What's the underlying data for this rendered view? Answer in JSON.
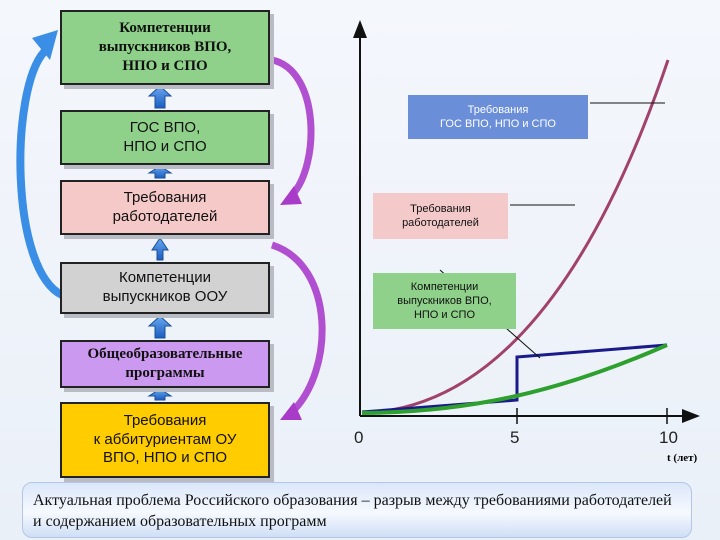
{
  "boxes": [
    {
      "text": "Компетенции\nвыпускников ВПО,\nНПО и СПО"
    },
    {
      "text": "ГОС ВПО,\nНПО и СПО"
    },
    {
      "text": "Требования\nработодателей"
    },
    {
      "text": "Компетенции\nвыпускников ООУ"
    },
    {
      "text": "Общеобразовательные\nпрограммы"
    },
    {
      "text": "Требования\nк аббитуриентам ОУ\nВПО, НПО и СПО"
    }
  ],
  "graph": {
    "labels": [
      "Требования\nГОС ВПО, НПО и СПО",
      "Требования\nработодателей",
      "Компетенции\nвыпускников ВПО,\nНПО и СПО"
    ],
    "x_ticks": [
      "0",
      "5",
      "10"
    ],
    "x_axis_label": "t (лет)"
  },
  "colors": {
    "requirements_curve": "#a0426a",
    "program_curve": "#2ea02e",
    "staircase": "#1a1a8a",
    "arrow_left": "#3a8ee6",
    "arrow_right": "#a83cc8"
  },
  "banner": {
    "text": "Актуальная проблема Российского образования – разрыв между требованиями работодателей и содержанием образовательных программ"
  }
}
